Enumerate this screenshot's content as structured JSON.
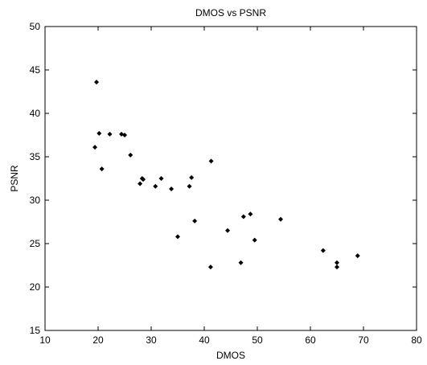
{
  "chart_data": {
    "type": "scatter",
    "title": "DMOS vs PSNR",
    "xlabel": "DMOS",
    "ylabel": "PSNR",
    "xlim": [
      10,
      80
    ],
    "ylim": [
      15,
      50
    ],
    "xticks": [
      10,
      20,
      30,
      40,
      50,
      60,
      70,
      80
    ],
    "yticks": [
      15,
      20,
      25,
      30,
      35,
      40,
      45,
      50
    ],
    "grid": false,
    "marker": "diamond",
    "marker_color": "#000000",
    "points": [
      {
        "x": 19.7,
        "y": 43.6
      },
      {
        "x": 19.4,
        "y": 36.1
      },
      {
        "x": 20.2,
        "y": 37.7
      },
      {
        "x": 20.7,
        "y": 33.6
      },
      {
        "x": 22.2,
        "y": 37.6
      },
      {
        "x": 24.4,
        "y": 37.6
      },
      {
        "x": 25.0,
        "y": 37.5
      },
      {
        "x": 26.1,
        "y": 35.2
      },
      {
        "x": 27.9,
        "y": 31.9
      },
      {
        "x": 28.3,
        "y": 32.5
      },
      {
        "x": 28.5,
        "y": 32.4
      },
      {
        "x": 30.8,
        "y": 31.6
      },
      {
        "x": 31.9,
        "y": 32.5
      },
      {
        "x": 33.8,
        "y": 31.3
      },
      {
        "x": 35.0,
        "y": 25.8
      },
      {
        "x": 37.2,
        "y": 31.6
      },
      {
        "x": 37.6,
        "y": 32.6
      },
      {
        "x": 38.2,
        "y": 27.6
      },
      {
        "x": 41.2,
        "y": 22.3
      },
      {
        "x": 41.3,
        "y": 34.5
      },
      {
        "x": 44.4,
        "y": 26.5
      },
      {
        "x": 46.9,
        "y": 22.8
      },
      {
        "x": 47.4,
        "y": 28.1
      },
      {
        "x": 48.7,
        "y": 28.4
      },
      {
        "x": 49.5,
        "y": 25.4
      },
      {
        "x": 54.4,
        "y": 27.8
      },
      {
        "x": 62.4,
        "y": 24.2
      },
      {
        "x": 65.0,
        "y": 22.8
      },
      {
        "x": 65.0,
        "y": 22.3
      },
      {
        "x": 68.9,
        "y": 23.6
      }
    ]
  }
}
